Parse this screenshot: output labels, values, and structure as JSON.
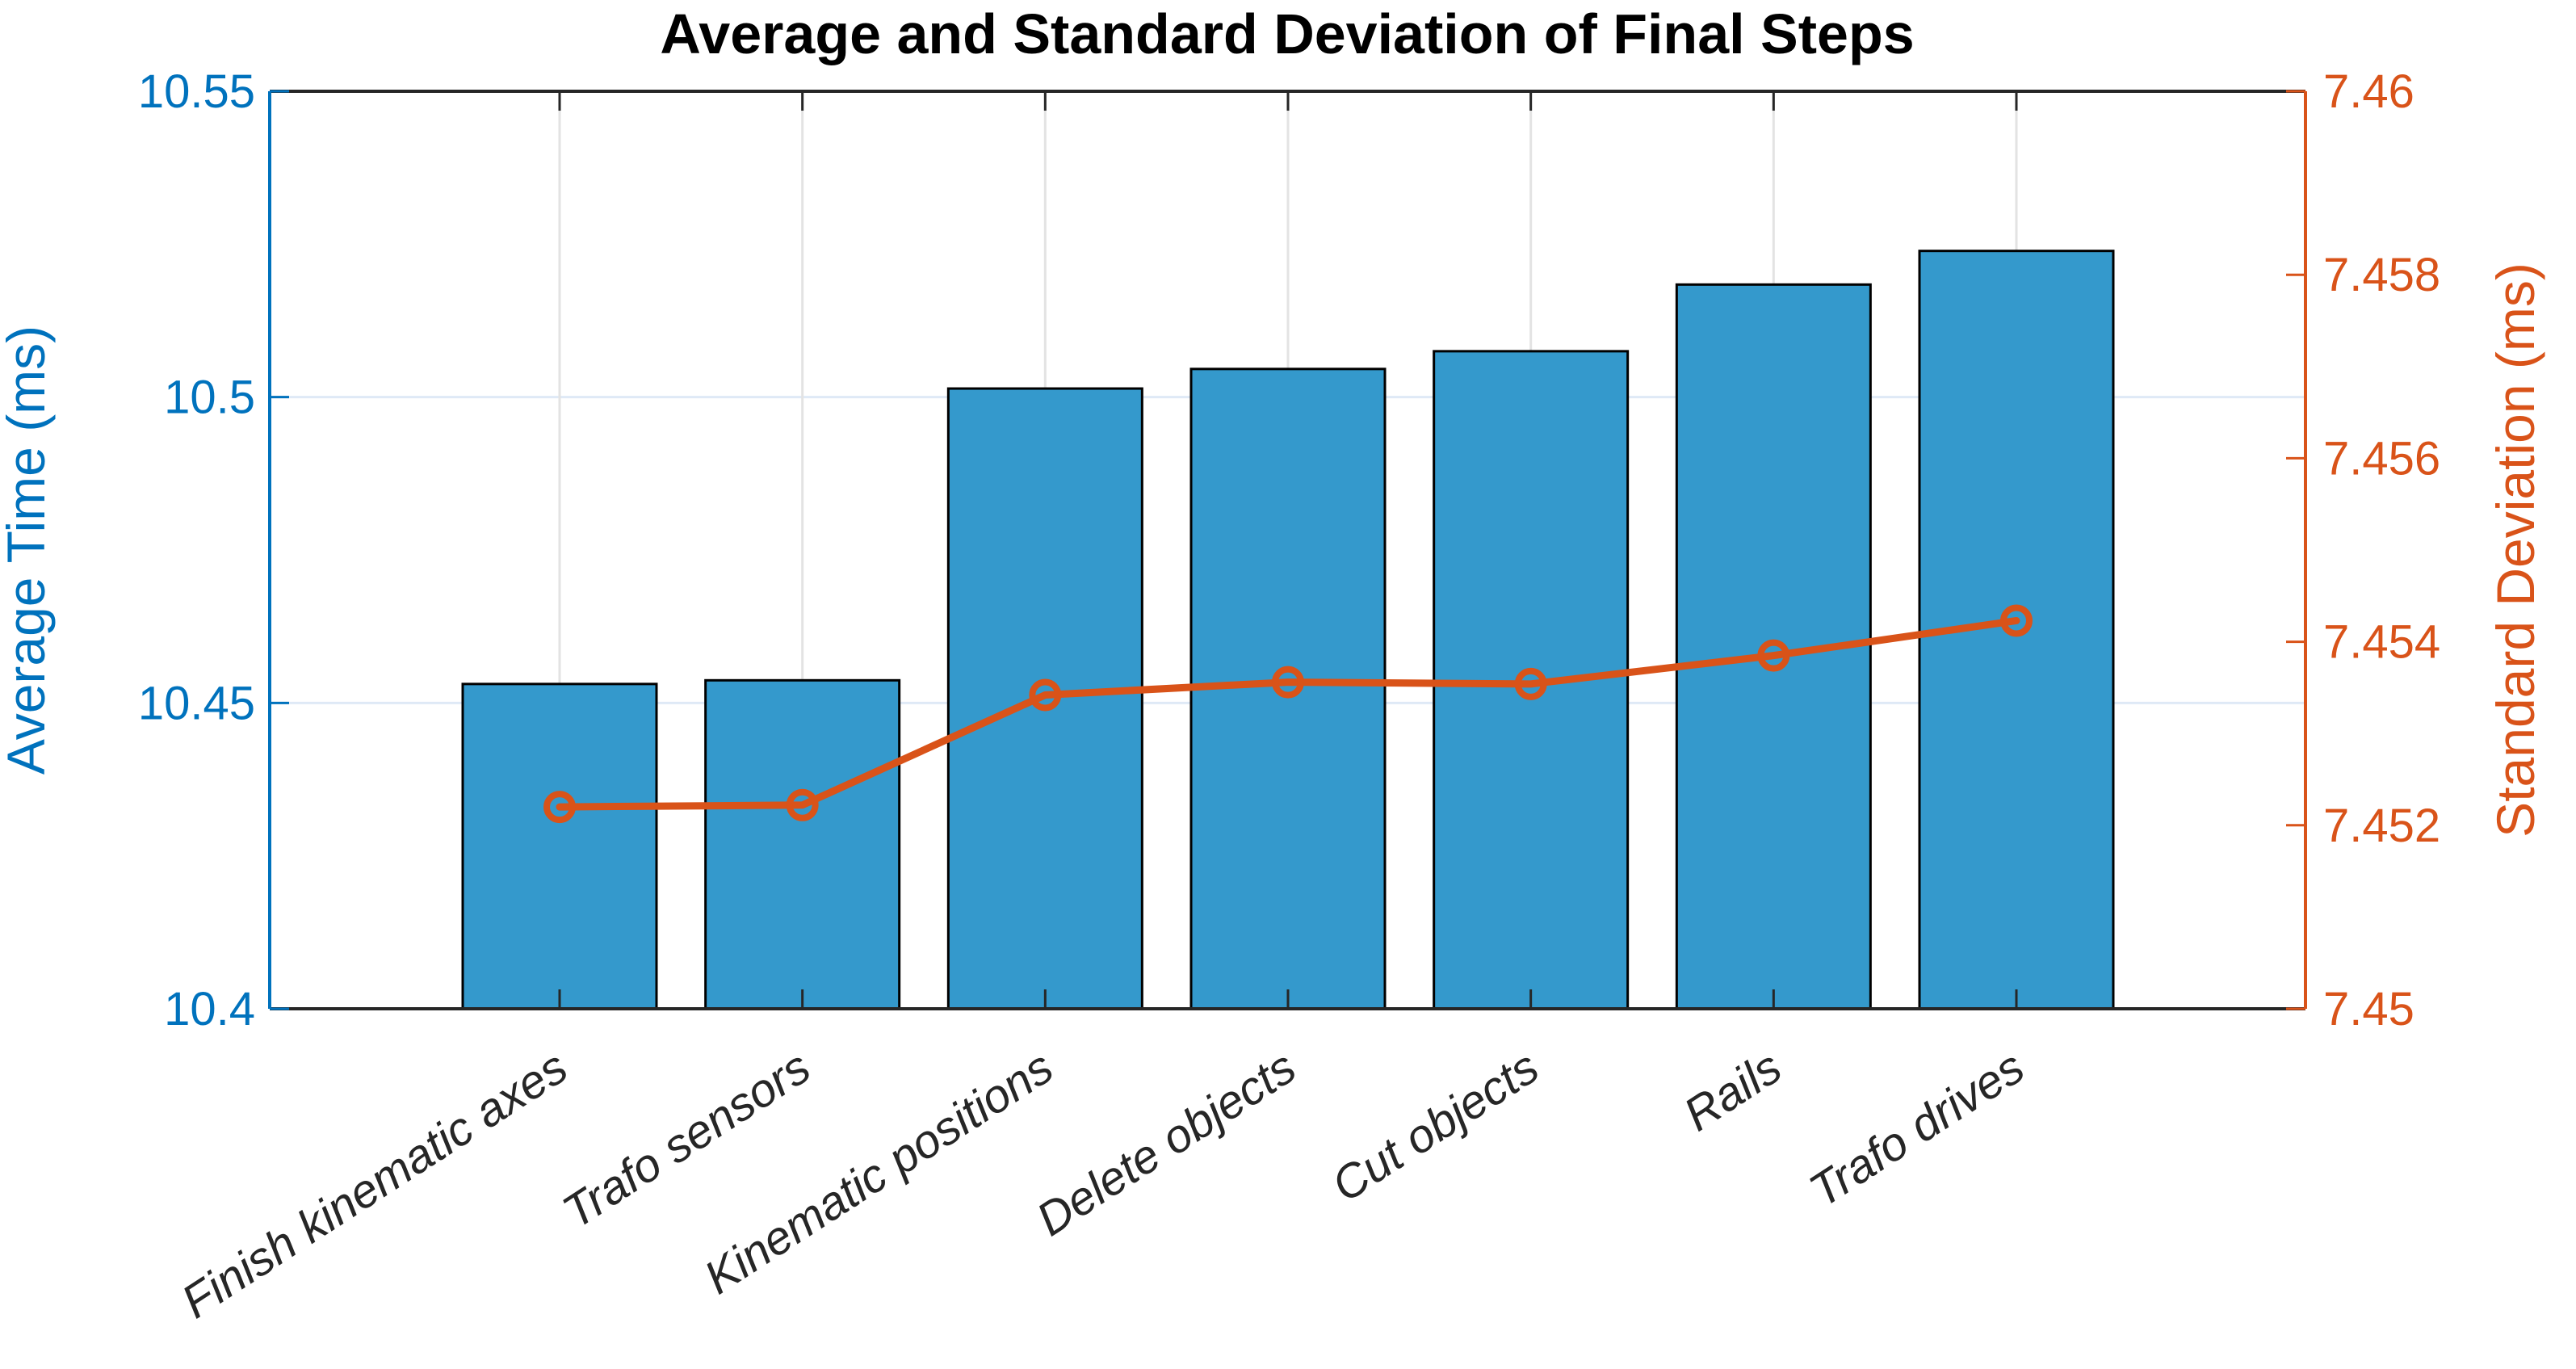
{
  "title": "Average and Standard Deviation of Final Steps",
  "chart_data": {
    "type": "combo",
    "categories": [
      "Finish kinematic axes",
      "Trafo sensors",
      "Kinematic positions",
      "Delete objects",
      "Cut objects",
      "Rails",
      "Trafo drives"
    ],
    "series": [
      {
        "name": "Average Time",
        "type": "bar",
        "axis": "left",
        "values": [
          10.4531,
          10.4537,
          10.5014,
          10.5046,
          10.5075,
          10.5184,
          10.5239
        ],
        "bar_fill_color": "#3499CC",
        "bar_edge_color": "#000000"
      },
      {
        "name": "Standard Deviation",
        "type": "line",
        "axis": "right",
        "values": [
          7.4522,
          7.45222,
          7.45342,
          7.45356,
          7.45354,
          7.45385,
          7.45423
        ],
        "line_color": "#D95319",
        "marker": "open-circle"
      }
    ],
    "left_axis": {
      "label": "Average Time (ms)",
      "color": "#0072BD",
      "range": [
        10.4,
        10.55
      ],
      "tick_values": [
        10.4,
        10.45,
        10.5,
        10.55
      ],
      "tick_labels": [
        "10.4",
        "10.45",
        "10.5",
        "10.55"
      ]
    },
    "right_axis": {
      "label": "Standard Deviation (ms)",
      "color": "#D95319",
      "range": [
        7.45,
        7.46
      ],
      "tick_values": [
        7.45,
        7.452,
        7.454,
        7.456,
        7.458,
        7.46
      ],
      "tick_labels": [
        "7.45",
        "7.452",
        "7.454",
        "7.456",
        "7.458",
        "7.46"
      ]
    },
    "x_axis": {
      "color": "#262626",
      "tick_label_rotation_deg": -33,
      "tick_labels": [
        "Finish kinematic axes",
        "Trafo sensors",
        "Kinematic positions",
        "Delete objects",
        "Cut objects",
        "Rails",
        "Trafo drives"
      ]
    },
    "grid": {
      "horizontal_color": "#DFE9F6",
      "vertical_color": "#E3E3E3",
      "shown": true
    },
    "legend": "none"
  }
}
